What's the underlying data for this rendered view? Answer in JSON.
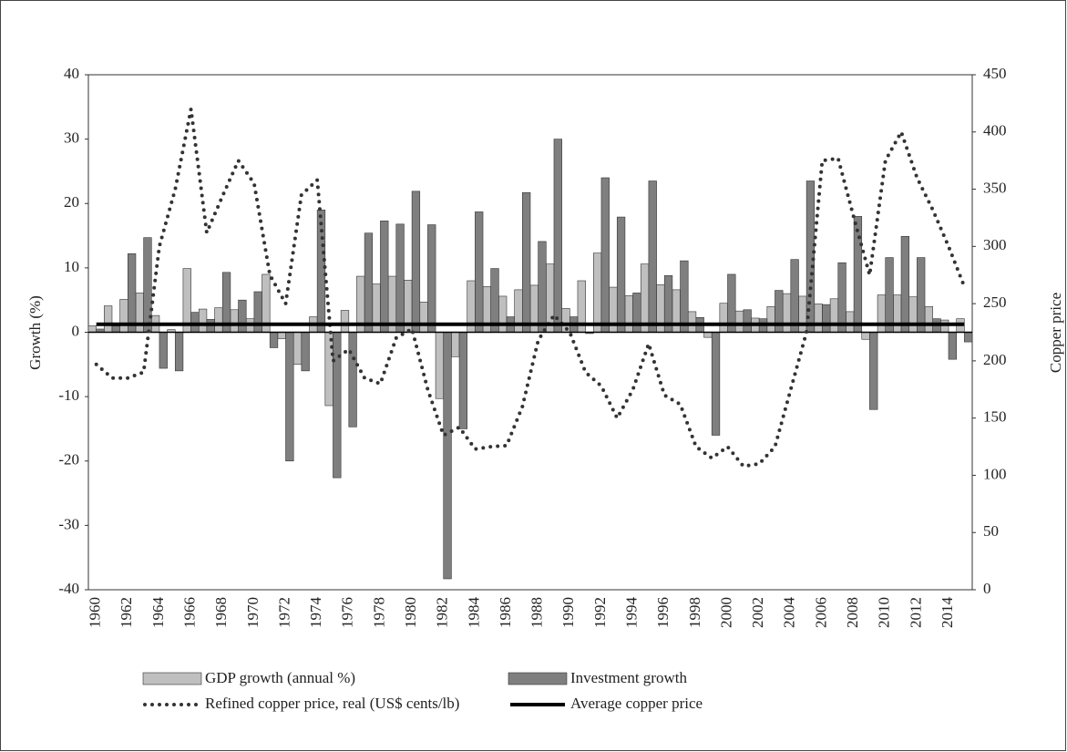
{
  "chart_data": {
    "type": "bar",
    "y_label": "Growth (%)",
    "y2_label": "Copper price",
    "categories": [
      1960,
      null,
      1962,
      null,
      1964,
      null,
      1966,
      null,
      1968,
      null,
      1970,
      null,
      1972,
      null,
      1974,
      null,
      1976,
      null,
      1978,
      null,
      1980,
      null,
      1982,
      null,
      1984,
      null,
      1986,
      null,
      1988,
      null,
      1990,
      null,
      1992,
      null,
      1994,
      null,
      1996,
      null,
      1998,
      null,
      2000,
      null,
      2002,
      null,
      2004,
      null,
      2006,
      null,
      2008,
      null,
      2010,
      null,
      2012,
      null,
      2014,
      null
    ],
    "ylim": [
      -40,
      40
    ],
    "yticks": [
      -40,
      -30,
      -20,
      -10,
      0,
      10,
      20,
      30,
      40
    ],
    "y2lim": [
      0,
      450
    ],
    "y2ticks": [
      0,
      50,
      100,
      150,
      200,
      250,
      300,
      350,
      400,
      450
    ],
    "series": [
      {
        "name": "GDP growth (annual %)",
        "type": "bar",
        "color": "#bfbfbf",
        "values": [
          1.0,
          4.1,
          5.1,
          6.1,
          2.6,
          0.4,
          9.9,
          3.6,
          3.8,
          3.5,
          2.1,
          9.0,
          -1.0,
          -5.0,
          2.4,
          -11.4,
          3.4,
          8.7,
          7.5,
          8.7,
          8.1,
          4.7,
          -10.3,
          -3.8,
          8.0,
          7.1,
          5.6,
          6.6,
          7.3,
          10.6,
          3.7,
          8.0,
          12.3,
          7.0,
          5.7,
          10.6,
          7.4,
          6.6,
          3.2,
          -0.8,
          4.5,
          3.3,
          2.2,
          4.0,
          6.0,
          5.6,
          4.4,
          5.2,
          3.2,
          -1.1,
          5.8,
          5.8,
          5.5,
          4.0,
          1.9,
          2.1
        ]
      },
      {
        "name": "Investment growth",
        "type": "bar",
        "color": "#7f7f7f",
        "values": [
          0.5,
          1.0,
          12.2,
          14.7,
          -5.6,
          -6.0,
          3.1,
          2.0,
          9.3,
          5.0,
          6.3,
          -2.4,
          -20.0,
          -6.0,
          19.0,
          -22.6,
          -14.7,
          15.4,
          17.3,
          16.8,
          21.9,
          16.7,
          -38.3,
          -15.0,
          18.7,
          9.9,
          2.4,
          21.7,
          14.1,
          30.0,
          2.4,
          -0.2,
          24.0,
          17.9,
          6.1,
          23.5,
          8.8,
          11.1,
          2.3,
          -16.0,
          9.0,
          3.5,
          2.1,
          6.5,
          11.3,
          23.5,
          4.3,
          10.8,
          18.0,
          -12.0,
          11.6,
          14.9,
          11.6,
          2.1,
          -4.2,
          -1.5
        ]
      },
      {
        "name": "Refined copper price, real (US$ cents/lb)",
        "type": "line",
        "axis": "y2",
        "color": "#333333",
        "dash": "dotted",
        "values": [
          197,
          185,
          185,
          190,
          300,
          350,
          420,
          312,
          344,
          375,
          355,
          275,
          250,
          345,
          358,
          200,
          210,
          185,
          180,
          220,
          228,
          175,
          135,
          142,
          123,
          125,
          126,
          160,
          218,
          240,
          225,
          190,
          178,
          150,
          175,
          215,
          170,
          162,
          125,
          115,
          125,
          108,
          110,
          125,
          175,
          225,
          375,
          377,
          325,
          275,
          375,
          400,
          360,
          332,
          300,
          265
        ]
      },
      {
        "name": "Average copper price",
        "type": "line",
        "axis": "y2",
        "color": "#000000",
        "dash": "solid",
        "values": [
          232,
          232,
          232,
          232,
          232,
          232,
          232,
          232,
          232,
          232,
          232,
          232,
          232,
          232,
          232,
          232,
          232,
          232,
          232,
          232,
          232,
          232,
          232,
          232,
          232,
          232,
          232,
          232,
          232,
          232,
          232,
          232,
          232,
          232,
          232,
          232,
          232,
          232,
          232,
          232,
          232,
          232,
          232,
          232,
          232,
          232,
          232,
          232,
          232,
          232,
          232,
          232,
          232,
          232,
          232,
          232
        ]
      }
    ]
  }
}
